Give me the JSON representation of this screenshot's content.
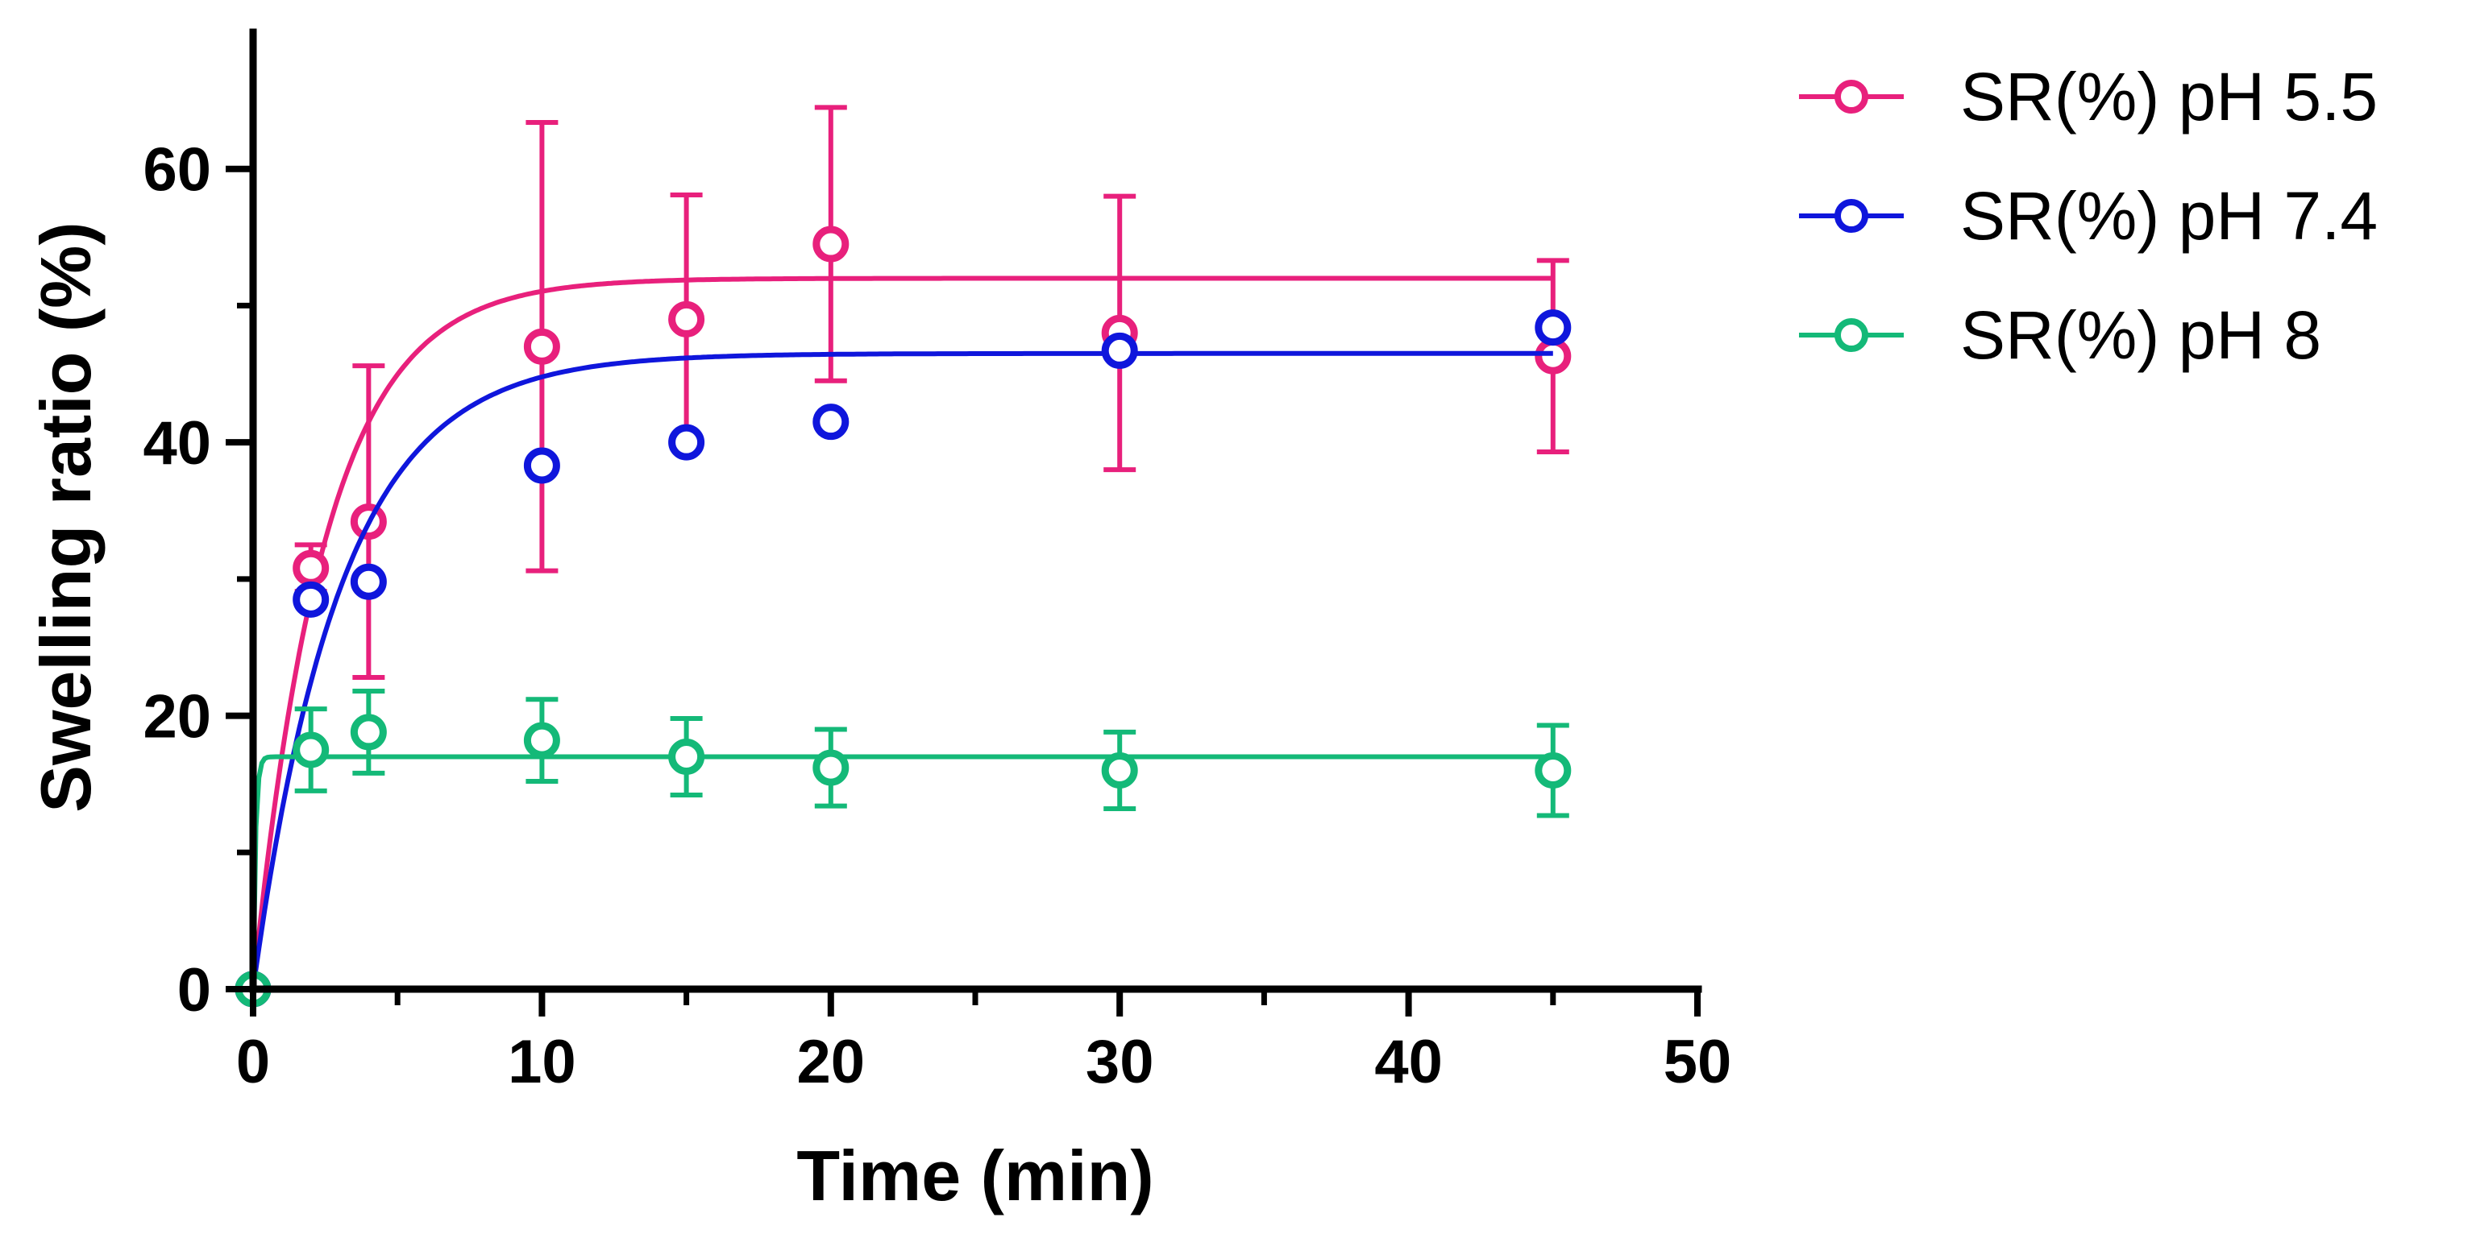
{
  "chart_data": {
    "type": "scatter",
    "title": "",
    "xlabel": "Time (min)",
    "ylabel": "Swelling ratio (%)",
    "xlim": [
      0,
      50
    ],
    "ylim": [
      0,
      70
    ],
    "xticks": [
      "0",
      "10",
      "20",
      "30",
      "40",
      "50"
    ],
    "yticks": [
      "0",
      "20",
      "40",
      "60"
    ],
    "grid": false,
    "legend_position": "top-right",
    "series": [
      {
        "name": "SR(%) pH 5.5",
        "color": "#e8207c",
        "x": [
          0,
          2,
          4,
          10,
          15,
          20,
          30,
          45
        ],
        "y": [
          0,
          30.8,
          34.2,
          47.0,
          49.0,
          54.5,
          48.0,
          46.3
        ],
        "error": [
          0,
          1.7,
          11.4,
          16.4,
          9.1,
          10.0,
          10.0,
          7.0
        ],
        "fit": {
          "ymax": 52.0,
          "k": 0.4
        }
      },
      {
        "name": "SR(%) pH 7.4",
        "color": "#0f16dc",
        "x": [
          0,
          2,
          4,
          10,
          15,
          20,
          30,
          45
        ],
        "y": [
          0,
          28.5,
          29.8,
          38.3,
          40.0,
          41.5,
          46.7,
          48.4
        ],
        "error": [
          0,
          0,
          0,
          0,
          0,
          0,
          0,
          0
        ],
        "fit": {
          "ymax": 46.5,
          "k": 0.33
        }
      },
      {
        "name": "SR(%) pH 8",
        "color": "#14b978",
        "x": [
          0,
          2,
          4,
          10,
          15,
          20,
          30,
          45
        ],
        "y": [
          0,
          17.5,
          18.8,
          18.2,
          17.0,
          16.2,
          16.0,
          16.0
        ],
        "error": [
          0,
          3.0,
          3.0,
          3.0,
          2.8,
          2.8,
          2.8,
          3.3
        ],
        "fit": {
          "ymax": 17.0,
          "k": 12.0
        }
      }
    ]
  }
}
